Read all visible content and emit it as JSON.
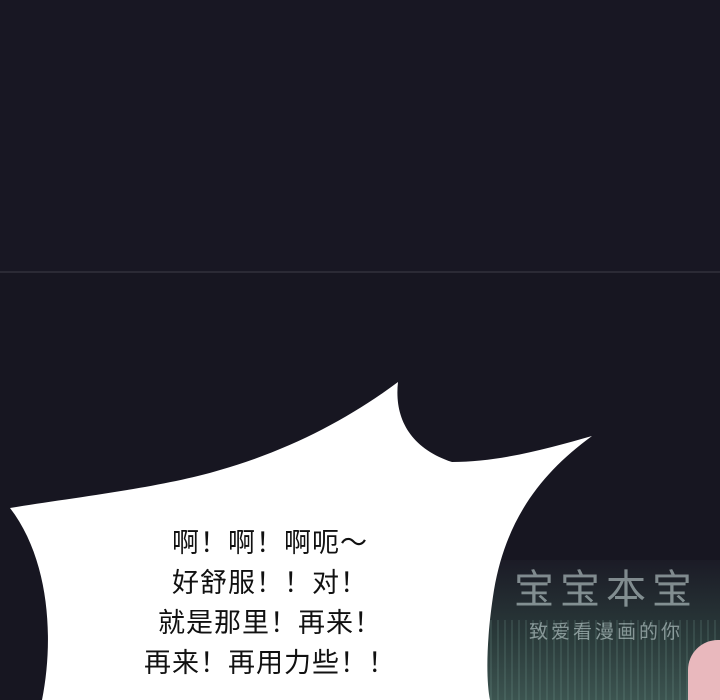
{
  "comic": {
    "dialogue_lines": [
      "啊！啊！啊呃～",
      "好舒服！！对！",
      "就是那里！再来！",
      "再来！再用力些！！"
    ]
  },
  "watermark": {
    "logo_text": "宝宝本宝",
    "slogan": "致爱看漫画的你"
  },
  "colors": {
    "background": "#181722",
    "bubble_fill": "#ffffff",
    "text": "#111111"
  }
}
